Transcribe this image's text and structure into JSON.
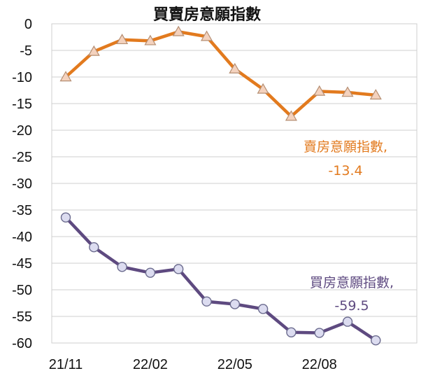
{
  "chart_data": {
    "type": "line",
    "title": "買賣房意願指數",
    "xlabel": "",
    "ylabel": "",
    "ylim": [
      -60,
      0
    ],
    "yticks": [
      0,
      -5,
      -10,
      -15,
      -20,
      -25,
      -30,
      -35,
      -40,
      -45,
      -50,
      -55,
      -60
    ],
    "ytick_labels": [
      "0",
      "-5",
      "-10",
      "-15",
      "-20",
      "-25",
      "-30",
      "-35",
      "-40",
      "-45",
      "-50",
      "-55",
      "-60"
    ],
    "grid": true,
    "legend": "none",
    "x": [
      "21/11",
      "21/12",
      "22/01",
      "22/02",
      "22/03",
      "22/04",
      "22/05",
      "22/06",
      "22/07",
      "22/08",
      "22/09",
      "22/10"
    ],
    "x_tick_labels": [
      {
        "index": 0,
        "label": "21/11"
      },
      {
        "index": 3,
        "label": "22/02"
      },
      {
        "index": 6,
        "label": "22/05"
      },
      {
        "index": 9,
        "label": "22/08"
      }
    ],
    "series": [
      {
        "name": "賣房意願指數",
        "color": "#E27A1E",
        "marker": "triangle",
        "marker_fill": "#F4D2BE",
        "values": [
          -10.0,
          -5.2,
          -3.0,
          -3.2,
          -1.5,
          -2.4,
          -8.5,
          -12.3,
          -17.4,
          -12.7,
          -12.9,
          -13.4
        ],
        "annotation": {
          "name": "賣房意願指數,",
          "value": "-13.4"
        }
      },
      {
        "name": "買房意願指數",
        "color": "#5E4A80",
        "marker": "circle",
        "marker_fill": "#DCDCF0",
        "values": [
          -36.4,
          -42.0,
          -45.7,
          -46.8,
          -46.1,
          -52.2,
          -52.7,
          -53.6,
          -58.0,
          -58.1,
          -56.0,
          -59.5
        ],
        "annotation": {
          "name": "買房意願指數,",
          "value": "-59.5"
        }
      }
    ]
  }
}
